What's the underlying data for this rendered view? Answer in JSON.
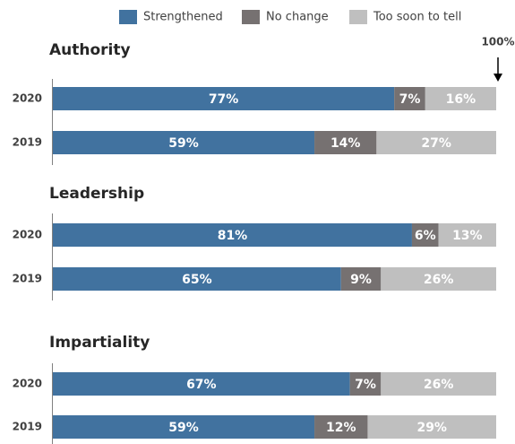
{
  "chart_data": [
    {
      "type": "stacked-bar",
      "orientation": "horizontal",
      "title": "Authority",
      "annotation": "100%",
      "categories": [
        "2020",
        "2019"
      ],
      "xlim": [
        0,
        100
      ],
      "series": [
        {
          "name": "Strengthened",
          "color": "#41729f",
          "values": [
            77,
            59
          ],
          "value_labels": [
            "77%",
            "59%"
          ]
        },
        {
          "name": "No change",
          "color": "#767171",
          "values": [
            7,
            14
          ],
          "value_labels": [
            "7%",
            "14%"
          ]
        },
        {
          "name": "Too soon to tell",
          "color": "#bfbfbf",
          "values": [
            16,
            27
          ],
          "value_labels": [
            "16%",
            "27%"
          ]
        }
      ]
    },
    {
      "type": "stacked-bar",
      "orientation": "horizontal",
      "title": "Leadership",
      "categories": [
        "2020",
        "2019"
      ],
      "xlim": [
        0,
        100
      ],
      "series": [
        {
          "name": "Strengthened",
          "color": "#41729f",
          "values": [
            81,
            65
          ],
          "value_labels": [
            "81%",
            "65%"
          ]
        },
        {
          "name": "No change",
          "color": "#767171",
          "values": [
            6,
            9
          ],
          "value_labels": [
            "6%",
            "9%"
          ]
        },
        {
          "name": "Too soon to tell",
          "color": "#bfbfbf",
          "values": [
            13,
            26
          ],
          "value_labels": [
            "13%",
            "26%"
          ]
        }
      ]
    },
    {
      "type": "stacked-bar",
      "orientation": "horizontal",
      "title": "Impartiality",
      "categories": [
        "2020",
        "2019"
      ],
      "xlim": [
        0,
        100
      ],
      "series": [
        {
          "name": "Strengthened",
          "color": "#41729f",
          "values": [
            67,
            59
          ],
          "value_labels": [
            "67%",
            "59%"
          ]
        },
        {
          "name": "No change",
          "color": "#767171",
          "values": [
            7,
            12
          ],
          "value_labels": [
            "7%",
            "12%"
          ]
        },
        {
          "name": "Too soon to tell",
          "color": "#bfbfbf",
          "values": [
            26,
            29
          ],
          "value_labels": [
            "26%",
            "29%"
          ]
        }
      ]
    }
  ]
}
